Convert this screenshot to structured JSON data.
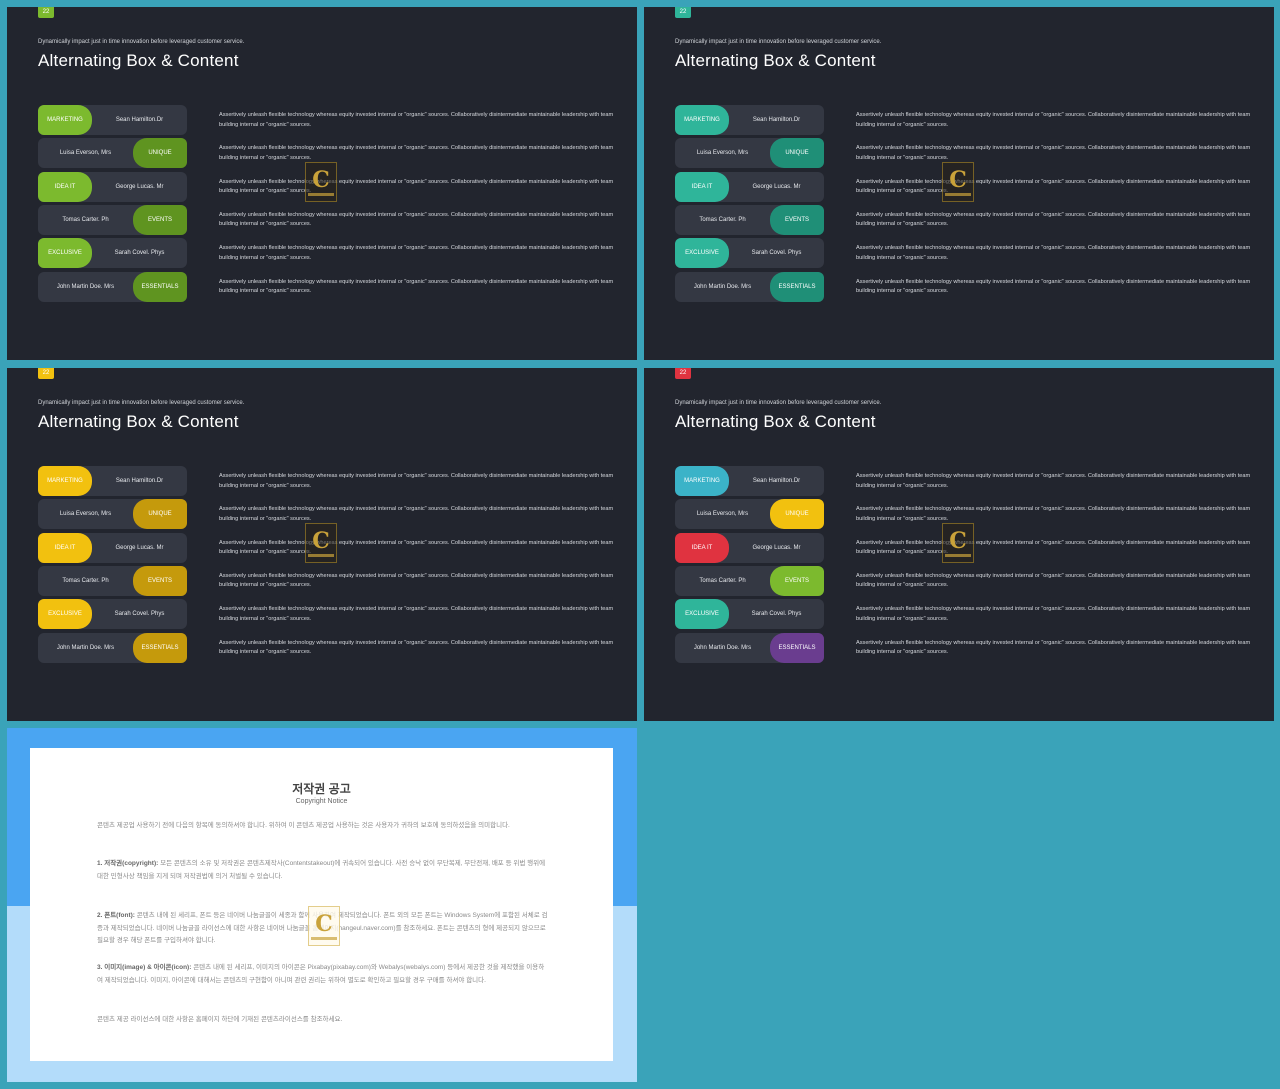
{
  "slide_number": "22",
  "subtitle": "Dynamically impact just in time innovation before leveraged customer service.",
  "title": "Alternating Box & Content",
  "rows": [
    {
      "chip": "MARKETING",
      "person": "Sean Hamilton.Dr",
      "side": "left"
    },
    {
      "chip": "UNIQUE",
      "person": "Luisa Everson, Mrs",
      "side": "right"
    },
    {
      "chip": "IDEA IT",
      "person": "George Lucas. Mr",
      "side": "left"
    },
    {
      "chip": "EVENTS",
      "person": "Tomas Carter. Ph",
      "side": "right"
    },
    {
      "chip": "EXCLUSIVE",
      "person": "Sarah Covel. Phys",
      "side": "left"
    },
    {
      "chip": "ESSENTIALS",
      "person": "John Martin Doe. Mrs",
      "side": "right"
    }
  ],
  "description": "Assertively unleash flexible technology whereas equity invested internal or \"organic\" sources. Collaboratively disintermediate maintainable leadership with team building internal or \"organic\" sources.",
  "watermark_letter": "C",
  "themes": [
    {
      "name": "green",
      "badge": "#7cba2e",
      "chips": [
        "#7cba2e",
        "#5f9420",
        "#7cba2e",
        "#5f9420",
        "#7cba2e",
        "#5f9420"
      ]
    },
    {
      "name": "teal",
      "badge": "#2fb59a",
      "chips": [
        "#2fb59a",
        "#1f8f77",
        "#2fb59a",
        "#1f8f77",
        "#2fb59a",
        "#1f8f77"
      ]
    },
    {
      "name": "yellow",
      "badge": "#f2c10f",
      "chips": [
        "#f2c10f",
        "#c59a0c",
        "#f2c10f",
        "#c59a0c",
        "#f2c10f",
        "#c59a0c"
      ]
    },
    {
      "name": "multi",
      "badge": "#e03340",
      "chips": [
        "#3bb3c8",
        "#f2c10f",
        "#e03340",
        "#7cba2e",
        "#2fb59a",
        "#6a3d8f"
      ]
    }
  ],
  "copyright": {
    "title": "저작권 공고",
    "subtitle": "Copyright Notice",
    "intro": "콘텐츠 제공업 사용하기 전에 다음의 항목에 동의하셔야 합니다. 위하여 이 콘텐츠 제공업 사용하는 것은 사용자가 귀하의 보호에 동의하셨음을 의미합니다.",
    "p1_head": "1. 저작권(copyright):",
    "p1": "모든 콘텐츠의 소유 및 저작권은 콘텐츠제작사(Contentstakeout)에 귀속되어 있습니다. 사전 승낙 없이 무단복제, 무단전재, 배포 등 위법 행위에 대한 민형사상 책임을 지게 되며 저작권법에 의거 처벌될 수 있습니다.",
    "p2_head": "2. 폰트(font):",
    "p2": "콘텐츠 내에 된 세리프, 폰트 등은 네이버 나눔글꼴이 세종과 함께 사용하여 제작되었습니다. 폰트 외의 모든 폰트는 Windows System에 포함된 서체로 검증과 제작되었습니다. 네이버 나눔글꼴 라이선스에 대한 사항은 네이버 나눔글꼴 홈페이지(hangeul.naver.com)를 참조하세요. 폰트는 콘텐츠의 형에 제공되지 않으므로 필요할 경우 해당 폰트를 구입하셔야 합니다.",
    "p3_head": "3. 이미지(image) & 아이콘(icon):",
    "p3": "콘텐츠 내에 된 세리프, 이미지의 아이콘은 Pixabay(pixabay.com)와 Webalys(webalys.com) 등에서 제공한 것을 제작했을 이용하여 제작되었습니다. 이미지, 아이콘에 대해서는 콘텐츠의 구현함이 아니며 관련 권리는 위하여 별도로 확인하고 필요할 경우 구매를 하셔야 합니다.",
    "outro": "콘텐츠 제공 라이선스에 대한 사항은 홈페이지 하단에 기재된 콘텐츠라이선스를 참조하세요."
  }
}
